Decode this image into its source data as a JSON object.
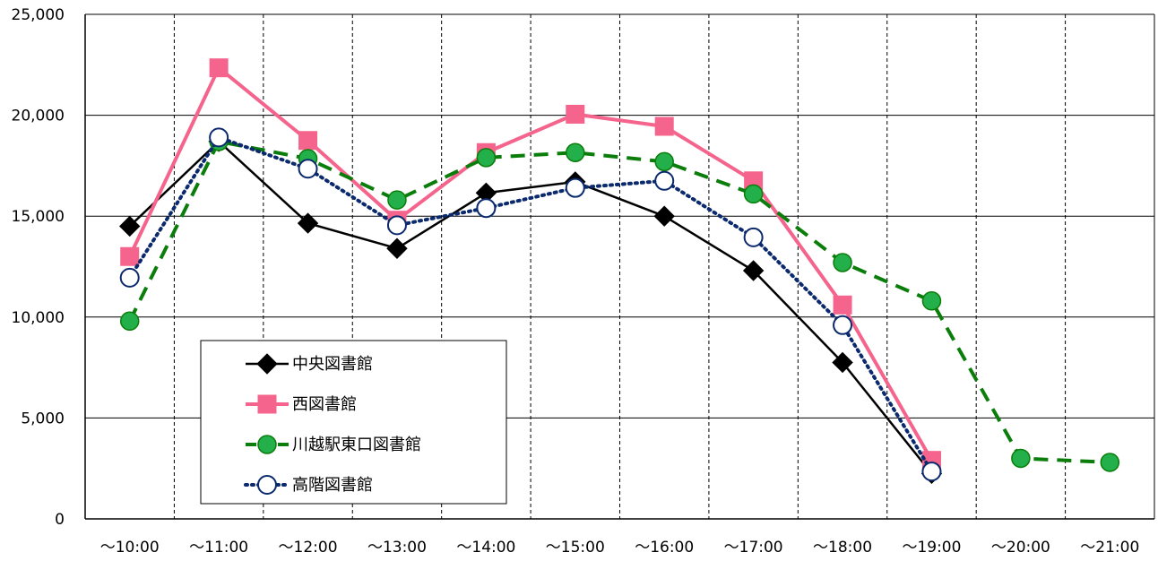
{
  "chart_data": {
    "type": "line",
    "title": "",
    "xlabel": "",
    "ylabel": "",
    "categories": [
      "～10:00",
      "～11:00",
      "～12:00",
      "～13:00",
      "～14:00",
      "～15:00",
      "～16:00",
      "～17:00",
      "～18:00",
      "～19:00",
      "～20:00",
      "～21:00"
    ],
    "ylim": [
      0,
      25000
    ],
    "yticks": [
      0,
      5000,
      10000,
      15000,
      20000,
      25000
    ],
    "ytick_labels": [
      "0",
      "5,000",
      "10,000",
      "15,000",
      "20,000",
      "25,000"
    ],
    "grid": {
      "horizontal": "solid",
      "vertical": "dashed"
    },
    "legend_position": "inside-bottom-left",
    "series": [
      {
        "name": "中央図書館",
        "color": "#000000",
        "marker": "diamond",
        "line_style": "solid",
        "values": [
          14500,
          18700,
          14650,
          13400,
          16150,
          16700,
          15000,
          12300,
          7750,
          2250,
          null,
          null
        ]
      },
      {
        "name": "西図書館",
        "color": "#f4648c",
        "marker": "square",
        "line_style": "solid",
        "values": [
          13000,
          22350,
          18750,
          14800,
          18150,
          20050,
          19450,
          16750,
          10600,
          2900,
          null,
          null
        ]
      },
      {
        "name": "川越駅東口図書館",
        "color": "#0a7d0a",
        "marker_fill": "#23b04a",
        "marker": "circle",
        "line_style": "dashed",
        "values": [
          9800,
          18700,
          17850,
          15800,
          17900,
          18150,
          17700,
          16100,
          12700,
          10800,
          3000,
          2800
        ]
      },
      {
        "name": "高階図書館",
        "color": "#0b2a6e",
        "marker": "open-circle",
        "line_style": "dotted",
        "values": [
          11950,
          18900,
          17350,
          14550,
          15400,
          16400,
          16750,
          13950,
          9600,
          2350,
          null,
          null
        ]
      }
    ]
  }
}
